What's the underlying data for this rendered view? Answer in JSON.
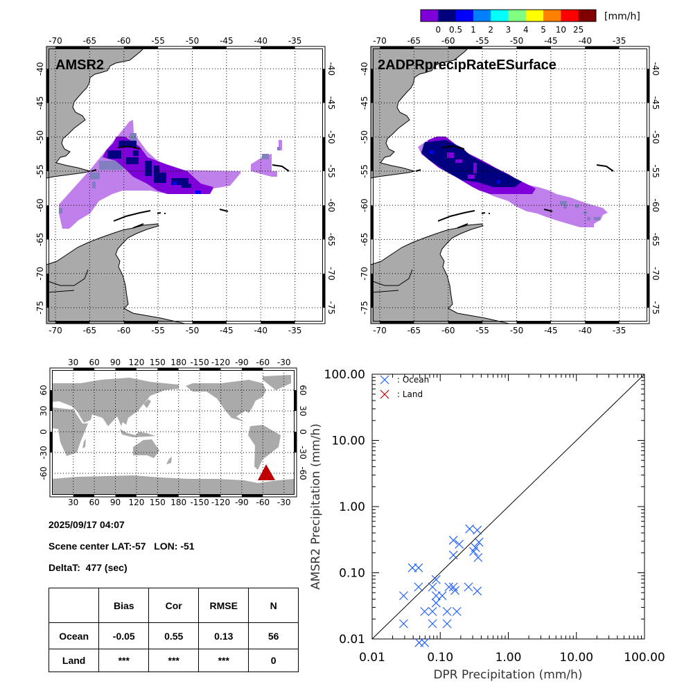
{
  "colorbar": {
    "colors": [
      "#7f00d9",
      "#00007f",
      "#0000ff",
      "#0080ff",
      "#00ffff",
      "#80ff80",
      "#ffff00",
      "#ff8000",
      "#ff0000",
      "#800000"
    ],
    "labels": [
      "0",
      "0.5",
      "1",
      "2",
      "3",
      "4",
      "5",
      "10",
      "25"
    ],
    "unit": "[mm/h]"
  },
  "map_left": {
    "title": "AMSR2"
  },
  "map_right": {
    "title": "2ADPRprecipRateESurface"
  },
  "map_ticks": {
    "lon": [
      "-70",
      "-65",
      "-60",
      "-55",
      "-50",
      "-45",
      "-40",
      "-35"
    ],
    "lat": [
      "-40",
      "-45",
      "-50",
      "-55",
      "-60",
      "-65",
      "-70",
      "-75"
    ]
  },
  "precip_colors": {
    "light": "#c080ec",
    "slate": "#8080c0",
    "purple": "#8000dc",
    "navy": "#000080",
    "blue": "#0000ff"
  },
  "world_map": {
    "lon_ticks": [
      "30",
      "60",
      "90",
      "120",
      "150",
      "180",
      "-150",
      "-120",
      "-90",
      "-60",
      "-30"
    ],
    "lat_ticks": [
      "60",
      "30",
      "0",
      "-30",
      "-60"
    ],
    "marker_color": "#c00000"
  },
  "info": {
    "datetime": "2025/09/17 04:07",
    "scene_center": "Scene center LAT:-57   LON: -51",
    "delta_t": "DeltaT:  477 (sec)"
  },
  "stats_table": {
    "headers": [
      "",
      "Bias",
      "Cor",
      "RMSE",
      "N"
    ],
    "rows": [
      [
        "Ocean",
        "-0.05",
        "0.55",
        "0.13",
        "56"
      ],
      [
        "Land",
        "***",
        "***",
        "***",
        "0"
      ]
    ]
  },
  "chart_data": {
    "type": "scatter",
    "title": "",
    "xlabel": "DPR Precipitation (mm/h)",
    "ylabel": "AMSR2 Precipitation (mm/h)",
    "xscale": "log",
    "yscale": "log",
    "xlim": [
      0.01,
      100
    ],
    "ylim": [
      0.01,
      100
    ],
    "xtick_labels": [
      "0.01",
      "0.10",
      "1.00",
      "10.00",
      "100.00"
    ],
    "ytick_labels": [
      "0.01",
      "0.10",
      "1.00",
      "10.00",
      "100.00"
    ],
    "reference_line": "1:1",
    "legend": {
      "placement": "top-left",
      "entries": [
        ": Ocean",
        ": Land"
      ]
    },
    "series": [
      {
        "name": "Ocean",
        "color": "#1f5fff",
        "points": [
          [
            0.27,
            0.46
          ],
          [
            0.35,
            0.44
          ],
          [
            0.156,
            0.31
          ],
          [
            0.19,
            0.27
          ],
          [
            0.37,
            0.29
          ],
          [
            0.33,
            0.24
          ],
          [
            0.31,
            0.21
          ],
          [
            0.156,
            0.185
          ],
          [
            0.36,
            0.17
          ],
          [
            0.039,
            0.119
          ],
          [
            0.048,
            0.119
          ],
          [
            0.048,
            0.061
          ],
          [
            0.077,
            0.061
          ],
          [
            0.087,
            0.079
          ],
          [
            0.134,
            0.061
          ],
          [
            0.156,
            0.061
          ],
          [
            0.165,
            0.054
          ],
          [
            0.26,
            0.061
          ],
          [
            0.35,
            0.053
          ],
          [
            0.029,
            0.045
          ],
          [
            0.087,
            0.045
          ],
          [
            0.107,
            0.045
          ],
          [
            0.087,
            0.035
          ],
          [
            0.059,
            0.026
          ],
          [
            0.077,
            0.026
          ],
          [
            0.126,
            0.026
          ],
          [
            0.175,
            0.026
          ],
          [
            0.029,
            0.017
          ],
          [
            0.077,
            0.017
          ],
          [
            0.126,
            0.017
          ],
          [
            0.049,
            0.0088
          ],
          [
            0.059,
            0.0088
          ]
        ]
      },
      {
        "name": "Land",
        "color": "#c00000",
        "points": []
      }
    ]
  }
}
